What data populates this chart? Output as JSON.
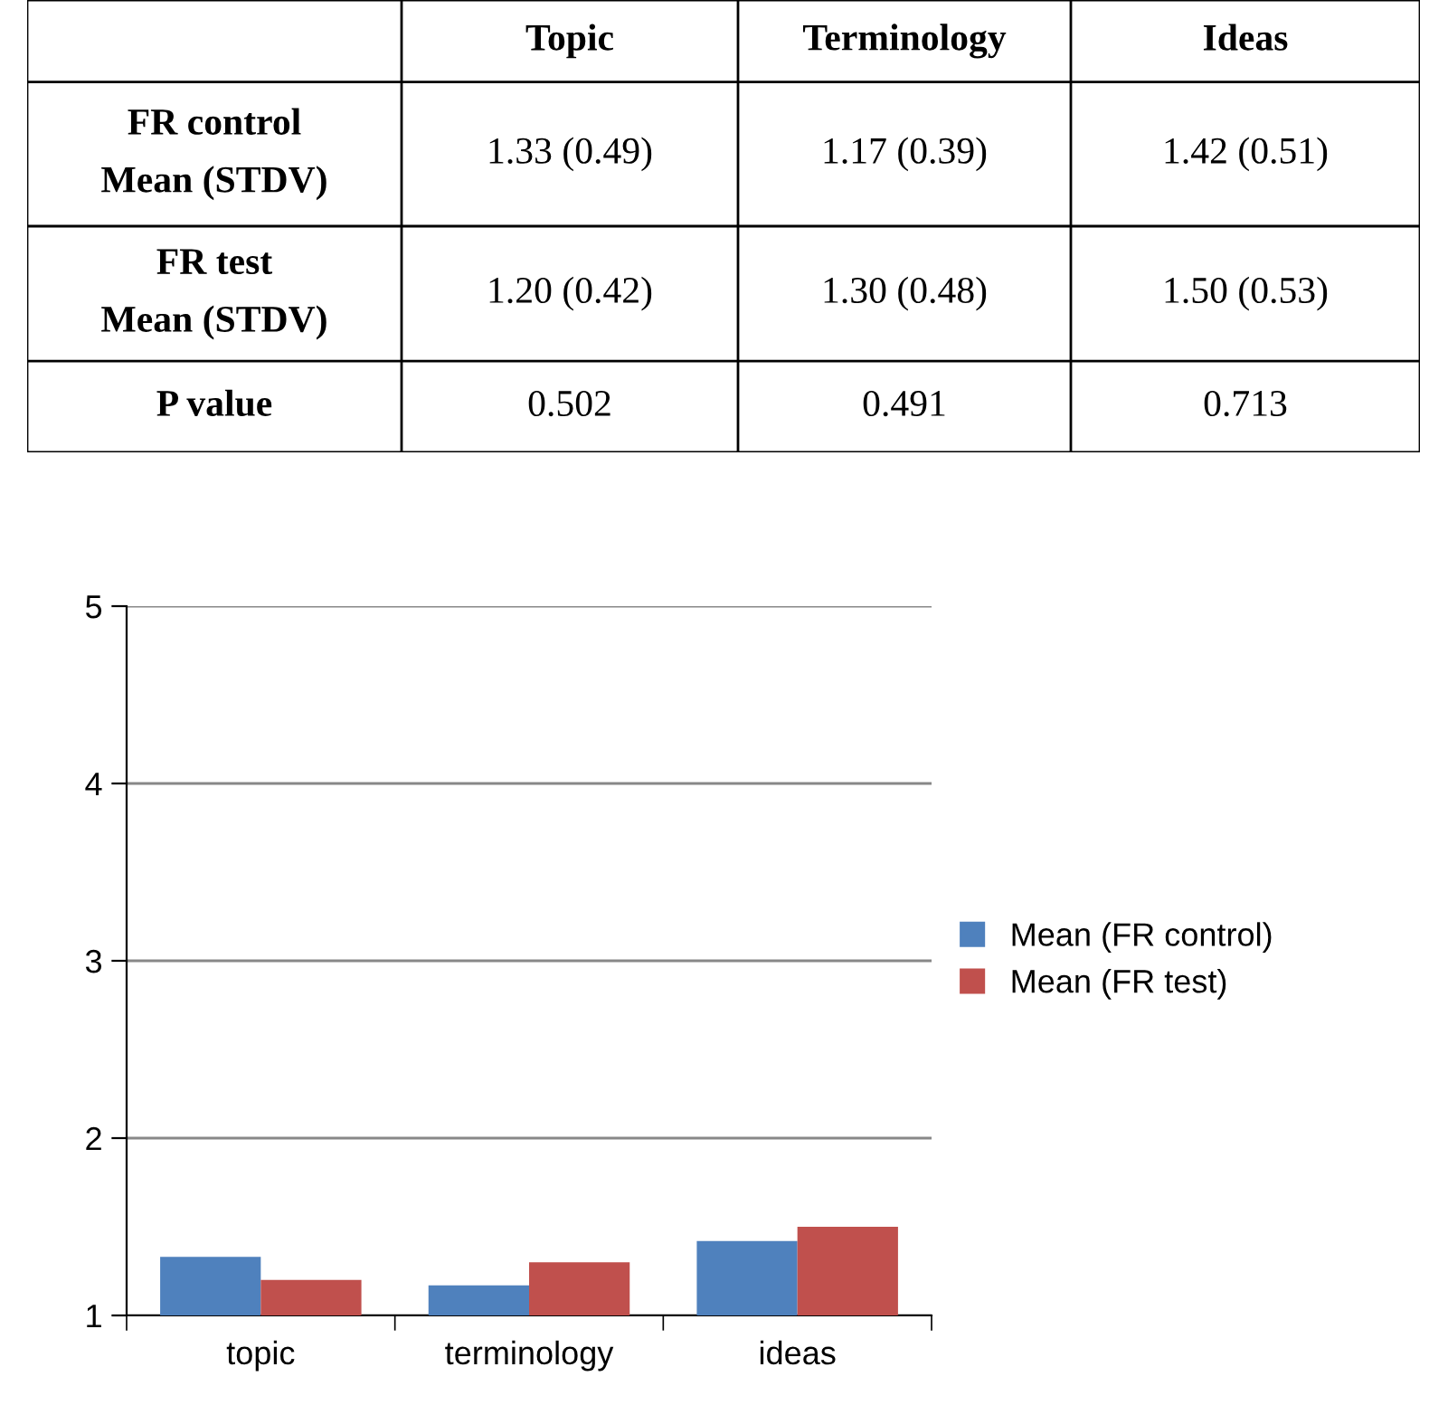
{
  "chart_data": {
    "type": "bar",
    "categories": [
      "topic",
      "terminology",
      "ideas"
    ],
    "series": [
      {
        "name": "Mean (FR control)",
        "color": "#4f81bd",
        "values": [
          1.33,
          1.17,
          1.42
        ]
      },
      {
        "name": "Mean (FR test)",
        "color": "#c0504d",
        "values": [
          1.2,
          1.3,
          1.5
        ]
      }
    ],
    "ylim": [
      1,
      5
    ],
    "yticks": [
      1,
      2,
      3,
      4,
      5
    ],
    "grid": "y",
    "legend": "right",
    "annotations": [
      "Topic",
      "Terminology",
      "Ideas",
      "FR control\nMean (STDV)",
      "1.33 (0.49)",
      "1.17 (0.39)",
      "1.42 (0.51)",
      "FR test\nMean (STDV)",
      "1.20 (0.42)",
      "1.30 (0.48)",
      "1.50 (0.53)",
      "P value",
      "0.502",
      "0.491",
      "0.713"
    ]
  }
}
